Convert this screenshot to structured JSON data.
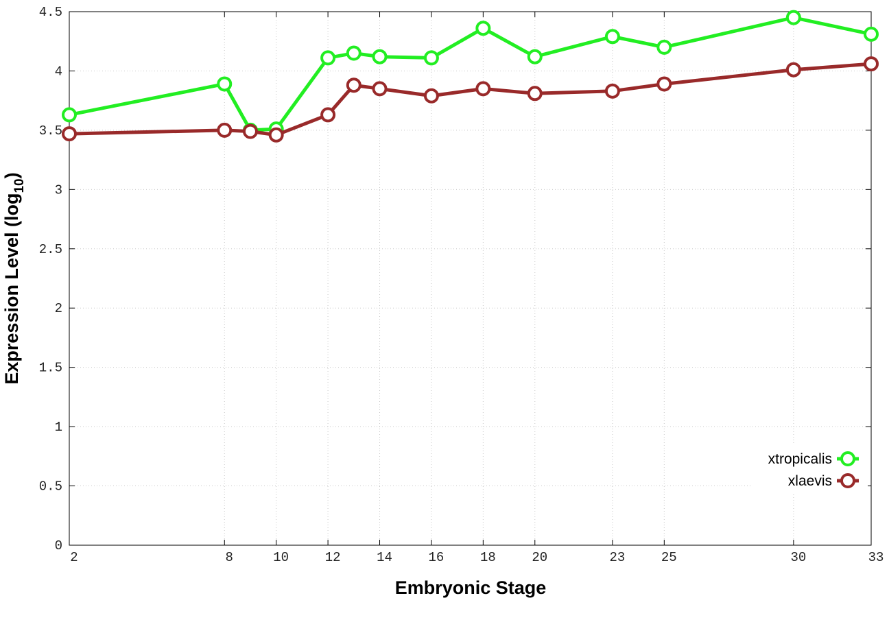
{
  "chart_data": {
    "type": "line",
    "xlabel": "Embryonic Stage",
    "ylabel_parts": [
      "Expression Level (log",
      "10",
      ")"
    ],
    "x": [
      2,
      8,
      9,
      10,
      12,
      13,
      14,
      16,
      18,
      20,
      23,
      25,
      30,
      33
    ],
    "series": [
      {
        "name": "xtropicalis",
        "color": "#22ee22",
        "values": [
          3.63,
          3.89,
          3.5,
          3.51,
          4.11,
          4.15,
          4.12,
          4.11,
          4.36,
          4.12,
          4.29,
          4.2,
          4.45,
          4.31
        ]
      },
      {
        "name": "xlaevis",
        "color": "#992a2a",
        "values": [
          3.47,
          3.5,
          3.49,
          3.46,
          3.63,
          3.88,
          3.85,
          3.79,
          3.85,
          3.81,
          3.83,
          3.89,
          4.01,
          4.06
        ]
      }
    ],
    "xlim": [
      2,
      33
    ],
    "xticks": [
      2,
      8,
      10,
      12,
      14,
      16,
      18,
      20,
      23,
      25,
      30,
      33
    ],
    "ylim": [
      0,
      4.5
    ],
    "yticks": [
      0,
      0.5,
      1,
      1.5,
      2,
      2.5,
      3,
      3.5,
      4,
      4.5
    ],
    "grid": true,
    "legend": "bottom-right"
  }
}
